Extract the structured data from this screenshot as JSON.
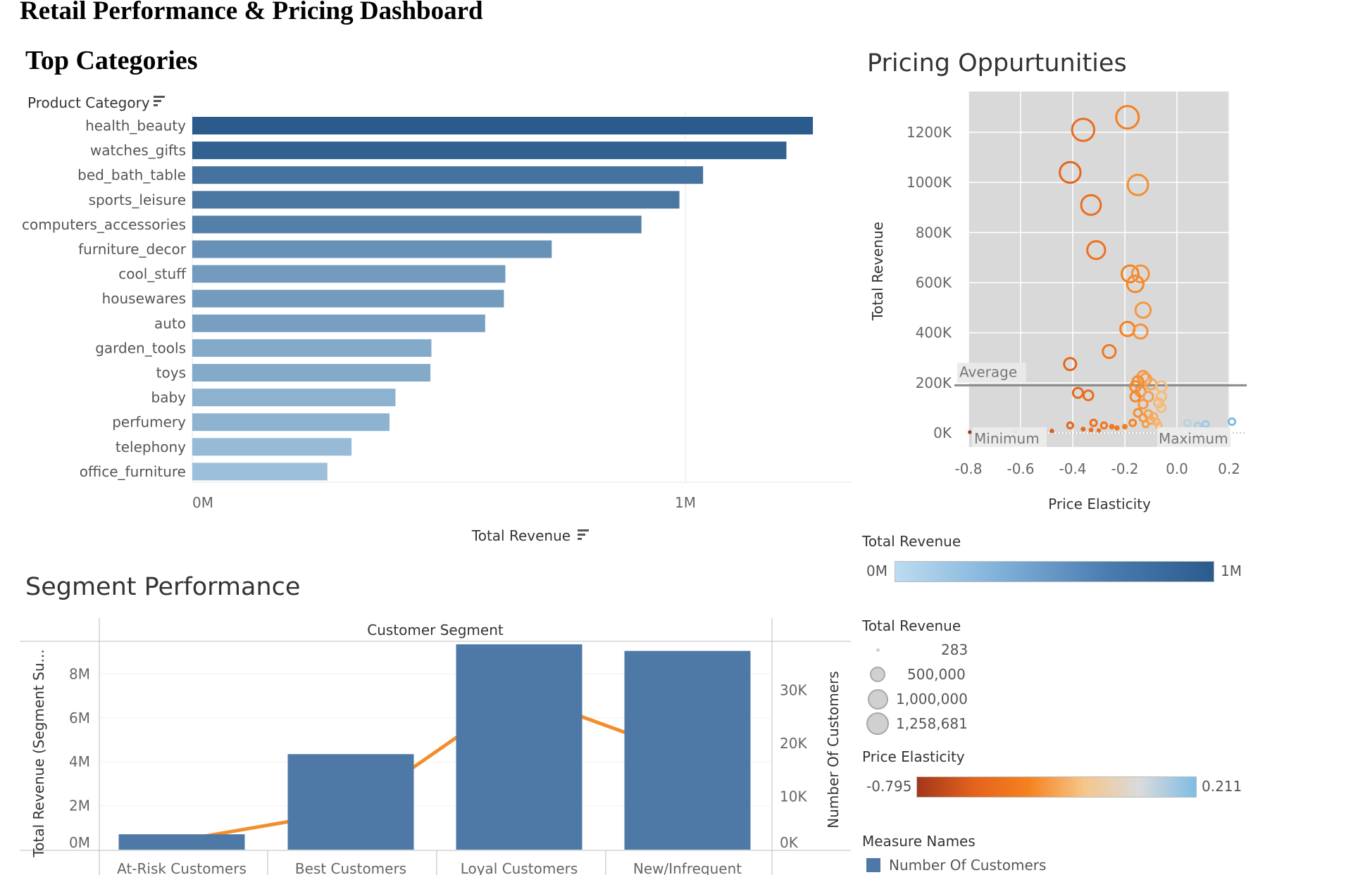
{
  "dashboard_title": "Retail Performance & Pricing Dashboard",
  "sections": {
    "top_categories": "Top Categories",
    "pricing": "Pricing Oppurtunities",
    "segment": "Segment Performance"
  },
  "colors": {
    "bar_dark": "#2b5b8c",
    "bar_light": "#bcdcf1",
    "segment_bar": "#4e79a7",
    "segment_line": "#f28e2b",
    "elasticity_low": "#a3361b",
    "elasticity_mid": "#f5821f",
    "elasticity_pale": "#f6c68a",
    "elasticity_high": "#7fbce3",
    "plot_bg": "#d9d9d9"
  },
  "chart_data": [
    {
      "id": "top_categories",
      "type": "bar",
      "orientation": "horizontal",
      "row_header": "Product Category",
      "xlabel": "Total Revenue",
      "xlim": [
        0,
        1300000
      ],
      "xticks": [
        {
          "value": 0,
          "label": "0M"
        },
        {
          "value": 1000000,
          "label": "1M"
        }
      ],
      "categories": [
        "health_beauty",
        "watches_gifts",
        "bed_bath_table",
        "sports_leisure",
        "computers_accessories",
        "furniture_decor",
        "cool_stuff",
        "housewares",
        "auto",
        "garden_tools",
        "toys",
        "baby",
        "perfumery",
        "telephony",
        "office_furniture"
      ],
      "values": [
        1258681,
        1205000,
        1036000,
        988000,
        911000,
        729000,
        635000,
        632000,
        594000,
        485000,
        483000,
        412000,
        400000,
        323000,
        274000
      ],
      "color_by": "Total Revenue"
    },
    {
      "id": "pricing",
      "type": "scatter",
      "xlabel": "Price Elasticity",
      "ylabel": "Total Revenue",
      "xlim": [
        -0.8,
        0.2
      ],
      "ylim": [
        0,
        1300000
      ],
      "xticks": [
        {
          "value": -0.8,
          "label": "-0.8"
        },
        {
          "value": -0.6,
          "label": "-0.6"
        },
        {
          "value": -0.4,
          "label": "-0.4"
        },
        {
          "value": -0.2,
          "label": "-0.2"
        },
        {
          "value": 0.0,
          "label": "0.0"
        },
        {
          "value": 0.2,
          "label": "0.2"
        }
      ],
      "yticks": [
        {
          "value": 0,
          "label": "0K"
        },
        {
          "value": 200000,
          "label": "200K"
        },
        {
          "value": 400000,
          "label": "400K"
        },
        {
          "value": 600000,
          "label": "600K"
        },
        {
          "value": 800000,
          "label": "800K"
        },
        {
          "value": 1000000,
          "label": "1000K"
        },
        {
          "value": 1200000,
          "label": "1200K"
        }
      ],
      "reference_line": {
        "label": "Average",
        "value": 190000
      },
      "band_labels": {
        "min": "Minimum",
        "max": "Maximum"
      },
      "grid": true,
      "points": [
        {
          "x": -0.19,
          "y": 1260000
        },
        {
          "x": -0.36,
          "y": 1210000
        },
        {
          "x": -0.41,
          "y": 1040000
        },
        {
          "x": -0.15,
          "y": 990000
        },
        {
          "x": -0.33,
          "y": 910000
        },
        {
          "x": -0.31,
          "y": 730000
        },
        {
          "x": -0.18,
          "y": 635000
        },
        {
          "x": -0.14,
          "y": 635000
        },
        {
          "x": -0.16,
          "y": 595000
        },
        {
          "x": -0.13,
          "y": 490000
        },
        {
          "x": -0.19,
          "y": 415000
        },
        {
          "x": -0.14,
          "y": 405000
        },
        {
          "x": -0.26,
          "y": 325000
        },
        {
          "x": -0.41,
          "y": 275000
        },
        {
          "x": -0.13,
          "y": 225000
        },
        {
          "x": -0.12,
          "y": 215000
        },
        {
          "x": -0.15,
          "y": 205000
        },
        {
          "x": -0.1,
          "y": 195000
        },
        {
          "x": -0.16,
          "y": 185000
        },
        {
          "x": -0.06,
          "y": 185000
        },
        {
          "x": -0.14,
          "y": 165000
        },
        {
          "x": -0.38,
          "y": 160000
        },
        {
          "x": -0.34,
          "y": 150000
        },
        {
          "x": -0.16,
          "y": 145000
        },
        {
          "x": -0.11,
          "y": 145000
        },
        {
          "x": -0.06,
          "y": 145000
        },
        {
          "x": -0.07,
          "y": 120000
        },
        {
          "x": -0.13,
          "y": 115000
        },
        {
          "x": -0.06,
          "y": 100000
        },
        {
          "x": -0.15,
          "y": 80000
        },
        {
          "x": -0.11,
          "y": 75000
        },
        {
          "x": -0.09,
          "y": 65000
        },
        {
          "x": -0.13,
          "y": 60000
        },
        {
          "x": -0.1,
          "y": 50000
        },
        {
          "x": -0.08,
          "y": 45000
        },
        {
          "x": -0.17,
          "y": 40000
        },
        {
          "x": -0.12,
          "y": 35000
        },
        {
          "x": -0.07,
          "y": 30000
        },
        {
          "x": -0.2,
          "y": 25000
        },
        {
          "x": -0.32,
          "y": 40000
        },
        {
          "x": -0.28,
          "y": 30000
        },
        {
          "x": -0.25,
          "y": 25000
        },
        {
          "x": -0.23,
          "y": 20000
        },
        {
          "x": -0.41,
          "y": 30000
        },
        {
          "x": -0.36,
          "y": 15000
        },
        {
          "x": -0.33,
          "y": 12000
        },
        {
          "x": -0.3,
          "y": 10000
        },
        {
          "x": -0.48,
          "y": 8000
        },
        {
          "x": -0.62,
          "y": 5000
        },
        {
          "x": -0.795,
          "y": 3000
        },
        {
          "x": 0.04,
          "y": 40000
        },
        {
          "x": 0.08,
          "y": 30000
        },
        {
          "x": 0.11,
          "y": 35000
        },
        {
          "x": 0.1,
          "y": 20000
        },
        {
          "x": 0.211,
          "y": 45000
        },
        {
          "x": 0.05,
          "y": 15000
        },
        {
          "x": 0.12,
          "y": 10000
        }
      ]
    },
    {
      "id": "segment",
      "type": "bar",
      "column_header": "Customer Segment",
      "ylabel": "Total Revenue (Segment Su...",
      "y2label": "Number Of Customers",
      "categories": [
        "At-Risk Customers",
        "Best Customers",
        "Loyal Customers",
        "New/Infrequent"
      ],
      "ylim": [
        0,
        9500000
      ],
      "y2lim": [
        0,
        38000
      ],
      "yticks": [
        {
          "value": 0,
          "label": "0M"
        },
        {
          "value": 2000000,
          "label": "2M"
        },
        {
          "value": 4000000,
          "label": "4M"
        },
        {
          "value": 6000000,
          "label": "6M"
        },
        {
          "value": 8000000,
          "label": "8M"
        }
      ],
      "y2ticks": [
        {
          "value": 0,
          "label": "0K"
        },
        {
          "value": 10000,
          "label": "10K"
        },
        {
          "value": 20000,
          "label": "20K"
        },
        {
          "value": 30000,
          "label": "30K"
        }
      ],
      "series": [
        {
          "name": "Number Of Customers",
          "type": "bar",
          "axis": "left",
          "values": [
            700000,
            4350000,
            9350000,
            9050000
          ]
        },
        {
          "type": "line",
          "axis": "right",
          "values": [
            1000,
            6500,
            28500,
            17000
          ]
        }
      ]
    }
  ],
  "legends": {
    "color_revenue": {
      "title": "Total Revenue",
      "min": "0M",
      "max": "1M"
    },
    "size_revenue": {
      "title": "Total Revenue",
      "items": [
        "283",
        "500,000",
        "1,000,000",
        "1,258,681"
      ]
    },
    "color_elasticity": {
      "title": "Price Elasticity",
      "min": "-0.795",
      "max": "0.211"
    },
    "measure_names": {
      "title": "Measure Names",
      "items": [
        "Number Of Customers"
      ]
    }
  }
}
